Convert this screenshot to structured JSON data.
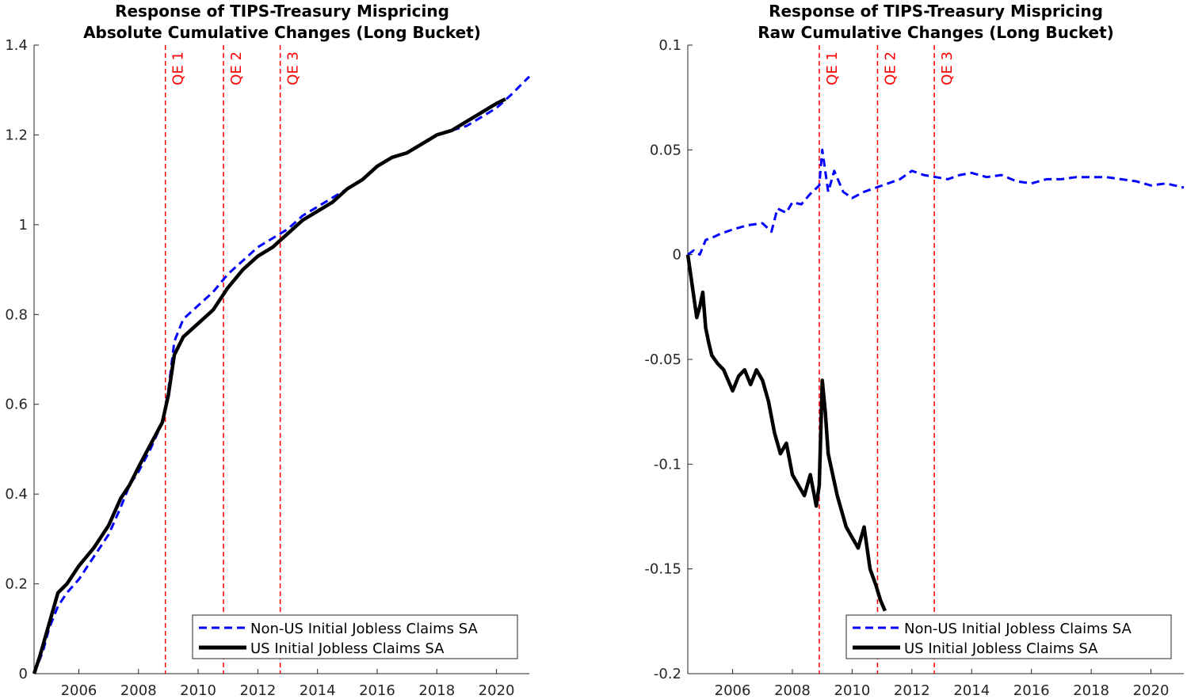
{
  "chart_data": [
    {
      "type": "line",
      "title": [
        "Response of TIPS-Treasury Mispricing",
        "Absolute Cumulative Changes (Long Bucket)"
      ],
      "xlabel": "",
      "ylabel": "",
      "xlim": [
        2004.5,
        2021.1
      ],
      "ylim": [
        0,
        1.4
      ],
      "xticks": [
        2006,
        2008,
        2010,
        2012,
        2014,
        2016,
        2018,
        2020
      ],
      "yticks": [
        0,
        0.2,
        0.4,
        0.6,
        0.8,
        1,
        1.2,
        1.4
      ],
      "ytick_labels": [
        "0",
        "0.2",
        "0.4",
        "0.6",
        "0.8",
        "1",
        "1.2",
        "1.4"
      ],
      "grid": false,
      "legend_position": "bottom-right",
      "vlines": [
        {
          "x": 2008.9,
          "label": "QE 1"
        },
        {
          "x": 2010.85,
          "label": "QE 2"
        },
        {
          "x": 2012.75,
          "label": "QE 3"
        }
      ],
      "series": [
        {
          "name": "Non-US Initial Jobless Claims SA",
          "color": "#0000ff",
          "style": "dashed",
          "x": [
            2004.5,
            2004.8,
            2005.0,
            2005.3,
            2005.6,
            2006.0,
            2006.5,
            2007.0,
            2007.4,
            2007.7,
            2008.0,
            2008.4,
            2008.8,
            2009.0,
            2009.2,
            2009.5,
            2010.0,
            2010.5,
            2011.0,
            2011.5,
            2012.0,
            2012.5,
            2013.0,
            2013.5,
            2014.0,
            2014.5,
            2015.0,
            2015.5,
            2016.0,
            2016.5,
            2017.0,
            2017.5,
            2018.0,
            2018.5,
            2019.0,
            2019.5,
            2020.0,
            2020.5,
            2021.1
          ],
          "y": [
            0.0,
            0.05,
            0.1,
            0.15,
            0.18,
            0.21,
            0.26,
            0.31,
            0.37,
            0.42,
            0.45,
            0.5,
            0.56,
            0.63,
            0.74,
            0.79,
            0.82,
            0.85,
            0.89,
            0.92,
            0.95,
            0.97,
            0.99,
            1.02,
            1.04,
            1.06,
            1.08,
            1.1,
            1.13,
            1.15,
            1.16,
            1.18,
            1.2,
            1.21,
            1.22,
            1.24,
            1.26,
            1.29,
            1.33
          ]
        },
        {
          "name": "US Initial Jobless Claims SA",
          "color": "#000000",
          "style": "solid",
          "x": [
            2004.5,
            2004.7,
            2005.0,
            2005.3,
            2005.6,
            2006.0,
            2006.5,
            2007.0,
            2007.4,
            2007.7,
            2008.0,
            2008.4,
            2008.8,
            2009.0,
            2009.2,
            2009.5,
            2010.0,
            2010.5,
            2011.0,
            2011.5,
            2012.0,
            2012.5,
            2013.0,
            2013.5,
            2014.0,
            2014.5,
            2015.0,
            2015.5,
            2016.0,
            2016.5,
            2017.0,
            2017.5,
            2018.0,
            2018.5,
            2019.0,
            2019.5,
            2020.0,
            2020.3
          ],
          "y": [
            0.0,
            0.04,
            0.11,
            0.18,
            0.2,
            0.24,
            0.28,
            0.33,
            0.39,
            0.42,
            0.46,
            0.51,
            0.56,
            0.62,
            0.71,
            0.75,
            0.78,
            0.81,
            0.86,
            0.9,
            0.93,
            0.95,
            0.98,
            1.01,
            1.03,
            1.05,
            1.08,
            1.1,
            1.13,
            1.15,
            1.16,
            1.18,
            1.2,
            1.21,
            1.23,
            1.25,
            1.27,
            1.28
          ]
        }
      ]
    },
    {
      "type": "line",
      "title": [
        "Response of TIPS-Treasury Mispricing",
        "Raw Cumulative Changes (Long Bucket)"
      ],
      "xlabel": "",
      "ylabel": "",
      "xlim": [
        2004.5,
        2021.1
      ],
      "ylim": [
        -0.2,
        0.1
      ],
      "xticks": [
        2006,
        2008,
        2010,
        2012,
        2014,
        2016,
        2018,
        2020
      ],
      "yticks": [
        -0.2,
        -0.15,
        -0.1,
        -0.05,
        0,
        0.05,
        0.1
      ],
      "ytick_labels": [
        "-0.2",
        "-0.15",
        "-0.1",
        "-0.05",
        "0",
        "0.05",
        "0.1"
      ],
      "grid": false,
      "legend_position": "bottom-right",
      "vlines": [
        {
          "x": 2008.9,
          "label": "QE 1"
        },
        {
          "x": 2010.85,
          "label": "QE 2"
        },
        {
          "x": 2012.75,
          "label": "QE 3"
        }
      ],
      "series": [
        {
          "name": "Non-US Initial Jobless Claims SA",
          "color": "#0000ff",
          "style": "dashed",
          "x": [
            2004.5,
            2004.7,
            2004.9,
            2005.1,
            2005.3,
            2005.6,
            2006.0,
            2006.5,
            2007.0,
            2007.3,
            2007.5,
            2007.8,
            2008.0,
            2008.3,
            2008.6,
            2008.9,
            2009.0,
            2009.2,
            2009.4,
            2009.7,
            2010.0,
            2010.4,
            2010.8,
            2011.2,
            2011.6,
            2012.0,
            2012.4,
            2012.8,
            2013.2,
            2013.6,
            2014.0,
            2014.5,
            2015.0,
            2015.5,
            2016.0,
            2016.5,
            2017.0,
            2017.5,
            2018.0,
            2018.5,
            2019.0,
            2019.5,
            2020.0,
            2020.5,
            2021.1
          ],
          "y": [
            0.0,
            0.002,
            0.0,
            0.007,
            0.008,
            0.01,
            0.012,
            0.014,
            0.015,
            0.011,
            0.022,
            0.02,
            0.025,
            0.024,
            0.029,
            0.033,
            0.05,
            0.03,
            0.04,
            0.03,
            0.027,
            0.03,
            0.032,
            0.034,
            0.036,
            0.04,
            0.038,
            0.037,
            0.036,
            0.038,
            0.039,
            0.037,
            0.038,
            0.035,
            0.034,
            0.036,
            0.036,
            0.037,
            0.037,
            0.037,
            0.036,
            0.035,
            0.033,
            0.034,
            0.032
          ]
        },
        {
          "name": "US Initial Jobless Claims SA",
          "color": "#000000",
          "style": "solid",
          "x": [
            2004.5,
            2004.6,
            2004.8,
            2004.9,
            2005.0,
            2005.1,
            2005.2,
            2005.3,
            2005.4,
            2005.5,
            2005.7,
            2006.0,
            2006.2,
            2006.4,
            2006.6,
            2006.8,
            2007.0,
            2007.2,
            2007.4,
            2007.6,
            2007.8,
            2008.0,
            2008.2,
            2008.4,
            2008.6,
            2008.8,
            2008.9,
            2009.0,
            2009.1,
            2009.2,
            2009.5,
            2009.8,
            2010.0,
            2010.2,
            2010.4,
            2010.6,
            2010.8,
            2010.95,
            2011.1
          ],
          "y": [
            0.0,
            -0.01,
            -0.03,
            -0.025,
            -0.018,
            -0.035,
            -0.042,
            -0.048,
            -0.05,
            -0.052,
            -0.055,
            -0.065,
            -0.058,
            -0.055,
            -0.062,
            -0.055,
            -0.06,
            -0.07,
            -0.085,
            -0.095,
            -0.09,
            -0.105,
            -0.11,
            -0.115,
            -0.105,
            -0.12,
            -0.11,
            -0.06,
            -0.075,
            -0.095,
            -0.115,
            -0.13,
            -0.135,
            -0.14,
            -0.13,
            -0.15,
            -0.158,
            -0.165,
            -0.17
          ]
        }
      ]
    }
  ]
}
